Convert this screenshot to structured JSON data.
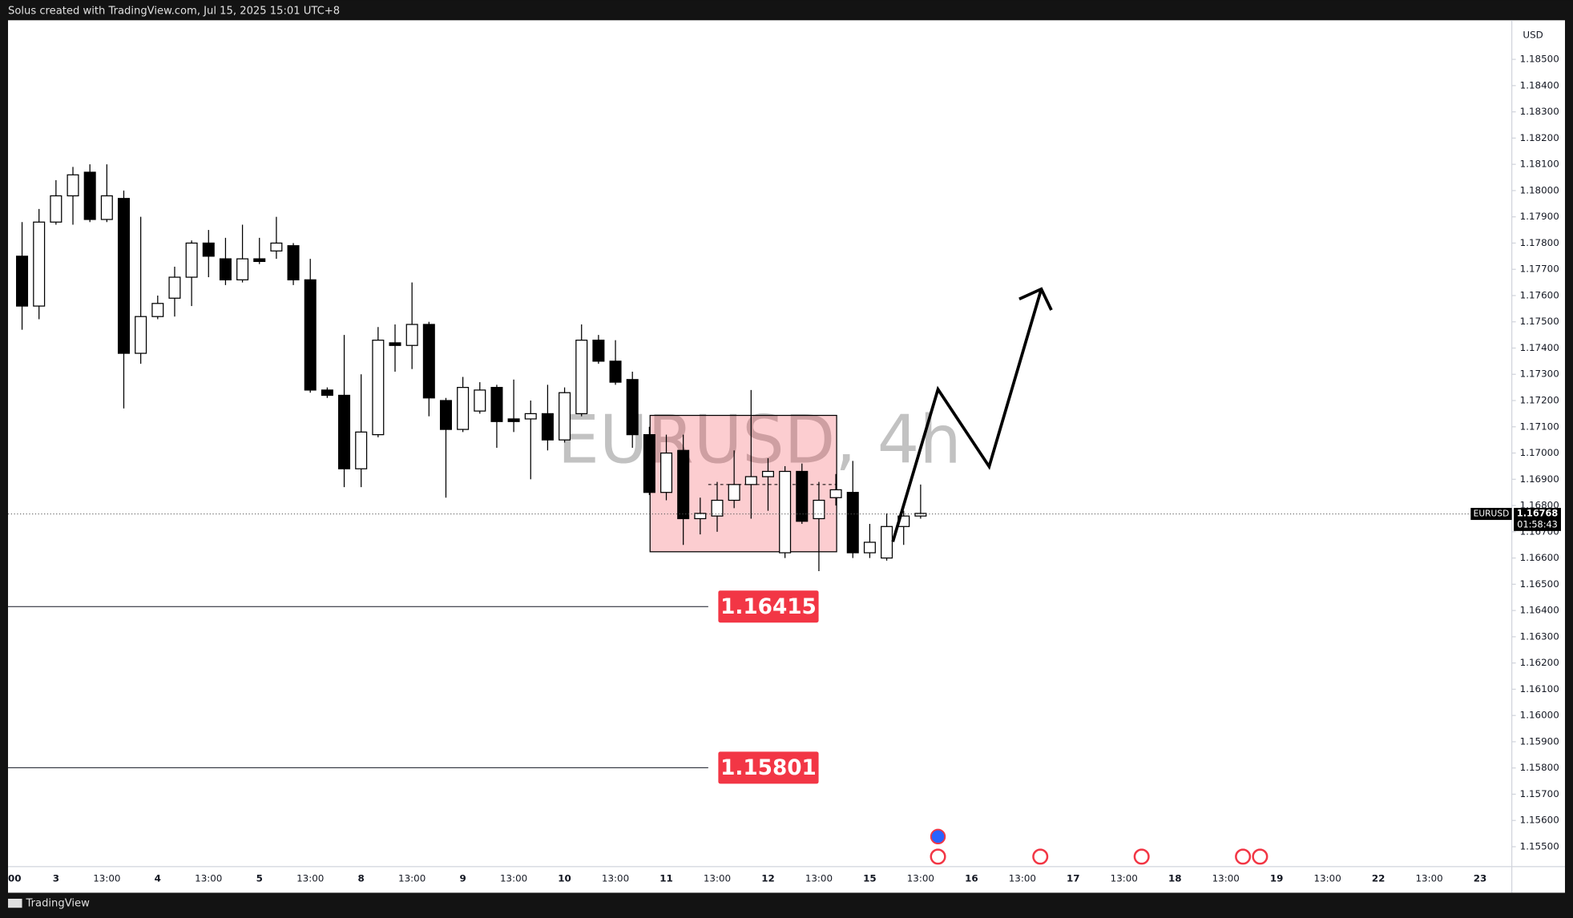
{
  "chart_data": {
    "type": "candlestick",
    "header": "Solus created with TradingView.com, Jul 15, 2025 15:01 UTC+8",
    "footer": "TradingView",
    "watermark": "EURUSD, 4h",
    "currency": "USD",
    "symbol": "EURUSD",
    "last_price": 1.16768,
    "countdown": "01:58:43",
    "up_color": "#ffffff",
    "down_color": "#000000",
    "wick_color": "#000000",
    "level_color": "#f23645",
    "levels": [
      1.16415,
      1.15801
    ],
    "open": [
      1.1775,
      1.1756,
      1.1788,
      1.1798,
      1.1807,
      1.1789,
      1.1797,
      1.1738,
      1.1752,
      1.1759,
      1.1767,
      1.178,
      1.1774,
      1.1766,
      1.1774,
      1.1777,
      1.1779,
      1.1766,
      1.1724,
      1.1722,
      1.1694,
      1.1707,
      1.1742,
      1.1741,
      1.1749,
      1.172,
      1.1709,
      1.1716,
      1.1725,
      1.1713,
      1.1713,
      1.1715,
      1.1705,
      1.1715,
      1.1743,
      1.1735,
      1.1728,
      1.1707,
      1.1685,
      1.1701,
      1.1675,
      1.1676,
      1.1682,
      1.1688,
      1.1691,
      1.1662,
      1.1693,
      1.1675,
      1.1683,
      1.1685,
      1.1662,
      1.166,
      1.1672,
      1.1676
    ],
    "high": [
      1.1788,
      1.1793,
      1.1804,
      1.1809,
      1.181,
      1.181,
      1.18,
      1.179,
      1.176,
      1.1771,
      1.1781,
      1.1785,
      1.1782,
      1.1787,
      1.1782,
      1.179,
      1.178,
      1.1774,
      1.1725,
      1.1745,
      1.173,
      1.1748,
      1.1749,
      1.1765,
      1.175,
      1.1721,
      1.1729,
      1.1727,
      1.1726,
      1.1728,
      1.172,
      1.1726,
      1.1725,
      1.1749,
      1.1745,
      1.1743,
      1.1731,
      1.171,
      1.1707,
      1.1707,
      1.1683,
      1.1689,
      1.1701,
      1.1724,
      1.1698,
      1.1695,
      1.1696,
      1.1689,
      1.1692,
      1.1697,
      1.1673,
      1.1677,
      1.1678,
      1.1688
    ],
    "low": [
      1.1747,
      1.1751,
      1.1787,
      1.1787,
      1.1788,
      1.1788,
      1.1717,
      1.1734,
      1.1751,
      1.1752,
      1.1756,
      1.1767,
      1.1764,
      1.1765,
      1.1772,
      1.1774,
      1.1764,
      1.1723,
      1.1721,
      1.1687,
      1.1687,
      1.1706,
      1.1731,
      1.1732,
      1.1714,
      1.1683,
      1.1708,
      1.1715,
      1.1702,
      1.1708,
      1.169,
      1.1701,
      1.1704,
      1.1714,
      1.1734,
      1.1726,
      1.1702,
      1.1684,
      1.1682,
      1.1665,
      1.1669,
      1.167,
      1.1679,
      1.1675,
      1.1678,
      1.166,
      1.1673,
      1.1655,
      1.168,
      1.166,
      1.166,
      1.1659,
      1.1665,
      1.1675
    ],
    "close": [
      1.1756,
      1.1788,
      1.1798,
      1.1806,
      1.1789,
      1.1798,
      1.1738,
      1.1752,
      1.1757,
      1.1767,
      1.178,
      1.1775,
      1.1766,
      1.1774,
      1.1773,
      1.178,
      1.1766,
      1.1724,
      1.1722,
      1.1694,
      1.1708,
      1.1743,
      1.1741,
      1.1749,
      1.1721,
      1.1709,
      1.1725,
      1.1724,
      1.1712,
      1.1712,
      1.1715,
      1.1705,
      1.1723,
      1.1743,
      1.1735,
      1.1727,
      1.1707,
      1.1685,
      1.17,
      1.1675,
      1.1677,
      1.1682,
      1.1688,
      1.1691,
      1.1693,
      1.1693,
      1.1674,
      1.1682,
      1.1686,
      1.1662,
      1.1666,
      1.1672,
      1.1676,
      1.1677
    ],
    "x_labels": [
      "00",
      "3",
      "13:00",
      "4",
      "13:00",
      "5",
      "13:00",
      "8",
      "13:00",
      "9",
      "13:00",
      "10",
      "13:00",
      "11",
      "13:00",
      "12",
      "13:00",
      "15",
      "13:00",
      "16",
      "13:00",
      "17",
      "13:00",
      "18",
      "13:00",
      "19",
      "13:00",
      "22",
      "13:00",
      "23"
    ],
    "ylim": [
      1.15424,
      1.18649
    ],
    "yticks": [
      {
        "value": 1.185,
        "label": "1.18500"
      },
      {
        "value": 1.184,
        "label": "1.18400"
      },
      {
        "value": 1.183,
        "label": "1.18300"
      },
      {
        "value": 1.182,
        "label": "1.18200"
      },
      {
        "value": 1.181,
        "label": "1.18100"
      },
      {
        "value": 1.18,
        "label": "1.18000"
      },
      {
        "value": 1.179,
        "label": "1.17900"
      },
      {
        "value": 1.178,
        "label": "1.17800"
      },
      {
        "value": 1.177,
        "label": "1.17700"
      },
      {
        "value": 1.176,
        "label": "1.17600"
      },
      {
        "value": 1.175,
        "label": "1.17500"
      },
      {
        "value": 1.174,
        "label": "1.17400"
      },
      {
        "value": 1.173,
        "label": "1.17300"
      },
      {
        "value": 1.172,
        "label": "1.17200"
      },
      {
        "value": 1.171,
        "label": "1.17100"
      },
      {
        "value": 1.17,
        "label": "1.17000"
      },
      {
        "value": 1.169,
        "label": "1.16900"
      },
      {
        "value": 1.168,
        "label": "1.16800"
      },
      {
        "value": 1.167,
        "label": "1.16700"
      },
      {
        "value": 1.166,
        "label": "1.16600"
      },
      {
        "value": 1.165,
        "label": "1.16500"
      },
      {
        "value": 1.164,
        "label": "1.16400"
      },
      {
        "value": 1.163,
        "label": "1.16300"
      },
      {
        "value": 1.162,
        "label": "1.16200"
      },
      {
        "value": 1.161,
        "label": "1.16100"
      },
      {
        "value": 1.16,
        "label": "1.16000"
      },
      {
        "value": 1.159,
        "label": "1.15900"
      },
      {
        "value": 1.158,
        "label": "1.15800"
      },
      {
        "value": 1.157,
        "label": "1.15700"
      },
      {
        "value": 1.156,
        "label": "1.15600"
      },
      {
        "value": 1.155,
        "label": "1.15500"
      }
    ]
  }
}
